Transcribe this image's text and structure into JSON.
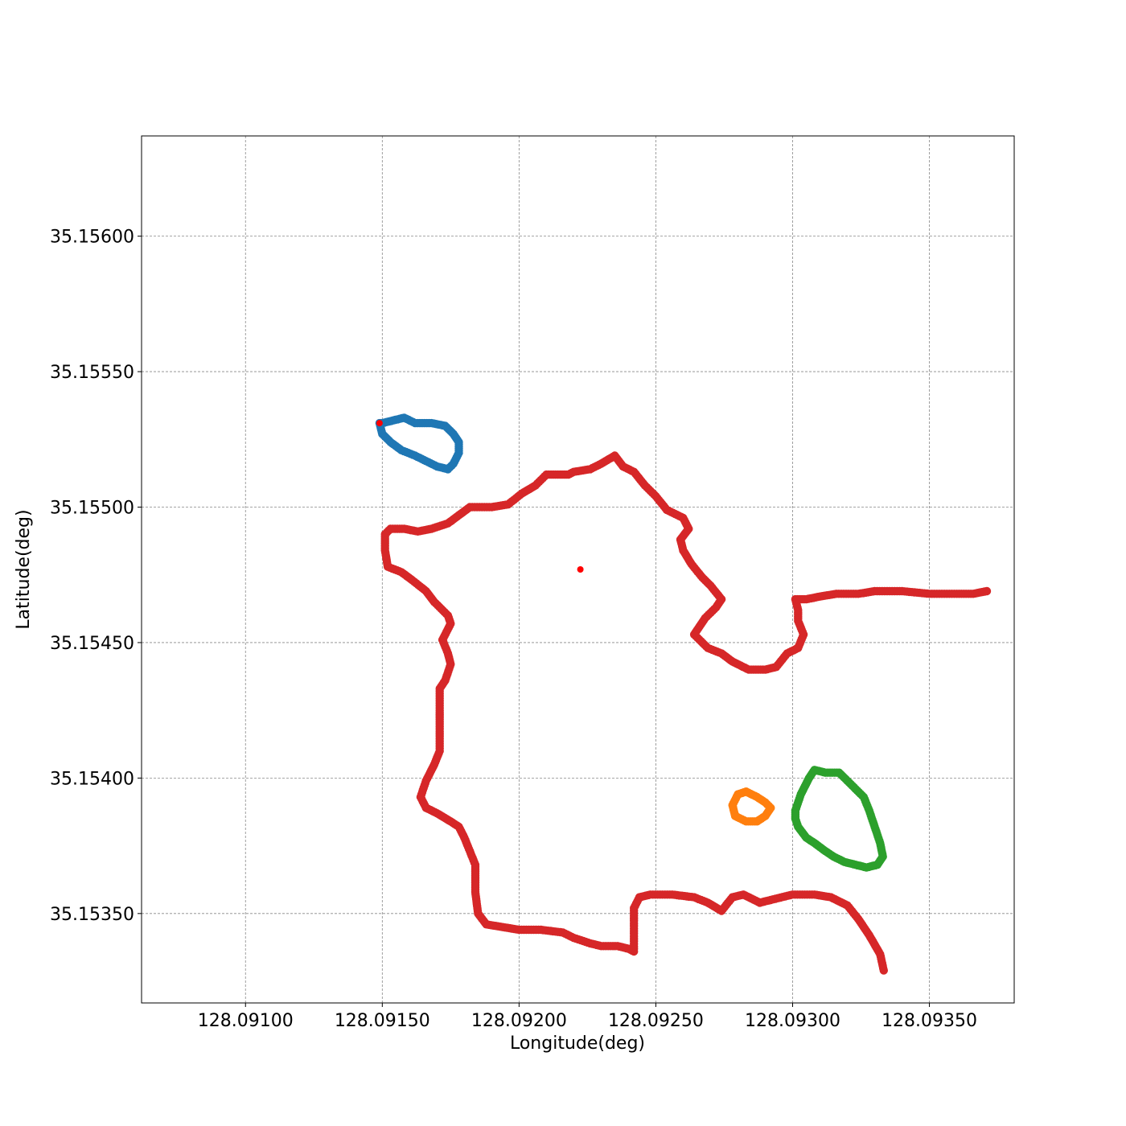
{
  "chart_data": {
    "type": "scatter",
    "title": "",
    "xlabel": "Longitude(deg)",
    "ylabel": "Latitude(deg)",
    "xlim": [
      128.09062,
      128.09381
    ],
    "ylim": [
      35.15317,
      35.15637
    ],
    "grid": true,
    "x_ticks": [
      128.091,
      128.0915,
      128.092,
      128.0925,
      128.093,
      128.0935
    ],
    "x_tick_labels": [
      "128.09100",
      "128.09150",
      "128.09200",
      "128.09250",
      "128.09300",
      "128.09350"
    ],
    "y_ticks": [
      35.1535,
      35.154,
      35.1545,
      35.155,
      35.1555,
      35.156
    ],
    "y_tick_labels": [
      "35.15350",
      "35.15400",
      "35.15450",
      "35.15500",
      "35.15550",
      "35.15600"
    ],
    "series": [
      {
        "color": "#d62728",
        "closed": false,
        "points": [
          [
            128.093333,
            35.15329
          ],
          [
            128.09332,
            35.15335
          ],
          [
            128.09328,
            35.15342
          ],
          [
            128.09324,
            35.15348
          ],
          [
            128.0932,
            35.15353
          ],
          [
            128.09314,
            35.15356
          ],
          [
            128.09308,
            35.15357
          ],
          [
            128.093,
            35.15357
          ],
          [
            128.09292,
            35.15355
          ],
          [
            128.09288,
            35.15354
          ],
          [
            128.09282,
            35.15357
          ],
          [
            128.09278,
            35.15356
          ],
          [
            128.09274,
            35.15351
          ],
          [
            128.09269,
            35.15354
          ],
          [
            128.09264,
            35.15356
          ],
          [
            128.09256,
            35.15357
          ],
          [
            128.09248,
            35.15357
          ],
          [
            128.09244,
            35.15356
          ],
          [
            128.09242,
            35.15352
          ],
          [
            128.09242,
            35.15336
          ],
          [
            128.0924,
            35.15337
          ],
          [
            128.09236,
            35.15338
          ],
          [
            128.0923,
            35.15338
          ],
          [
            128.09226,
            35.15339
          ],
          [
            128.0922,
            35.15341
          ],
          [
            128.09216,
            35.15343
          ],
          [
            128.09208,
            35.15344
          ],
          [
            128.092,
            35.15344
          ],
          [
            128.09194,
            35.15345
          ],
          [
            128.09188,
            35.15346
          ],
          [
            128.09185,
            35.1535
          ],
          [
            128.09184,
            35.15358
          ],
          [
            128.09184,
            35.15364
          ],
          [
            128.09184,
            35.15368
          ],
          [
            128.09182,
            35.15373
          ],
          [
            128.0918,
            35.15378
          ],
          [
            128.09178,
            35.15382
          ],
          [
            128.09175,
            35.15384
          ],
          [
            128.0917,
            35.15387
          ],
          [
            128.09166,
            35.15389
          ],
          [
            128.09164,
            35.15393
          ],
          [
            128.09166,
            35.15399
          ],
          [
            128.09169,
            35.15405
          ],
          [
            128.09171,
            35.1541
          ],
          [
            128.09171,
            35.1542
          ],
          [
            128.09171,
            35.15425
          ],
          [
            128.09171,
            35.15433
          ],
          [
            128.09173,
            35.15436
          ],
          [
            128.09175,
            35.15442
          ],
          [
            128.09174,
            35.15446
          ],
          [
            128.09172,
            35.15451
          ],
          [
            128.09175,
            35.15457
          ],
          [
            128.09174,
            35.1546
          ],
          [
            128.09169,
            35.15465
          ],
          [
            128.09166,
            35.15469
          ],
          [
            128.09161,
            35.15473
          ],
          [
            128.09157,
            35.15476
          ],
          [
            128.09152,
            35.15478
          ],
          [
            128.09151,
            35.15484
          ],
          [
            128.09151,
            35.1549
          ],
          [
            128.09153,
            35.15492
          ],
          [
            128.09158,
            35.15492
          ],
          [
            128.09163,
            35.15491
          ],
          [
            128.09168,
            35.15492
          ],
          [
            128.09174,
            35.15494
          ],
          [
            128.09178,
            35.15497
          ],
          [
            128.09182,
            35.155
          ],
          [
            128.0919,
            35.155
          ],
          [
            128.09196,
            35.15501
          ],
          [
            128.09201,
            35.15505
          ],
          [
            128.09206,
            35.15508
          ],
          [
            128.0921,
            35.15512
          ],
          [
            128.09215,
            35.15512
          ],
          [
            128.09218,
            35.15512
          ],
          [
            128.0922,
            35.15513
          ],
          [
            128.09226,
            35.15514
          ],
          [
            128.0923,
            35.15516
          ],
          [
            128.09235,
            35.15519
          ],
          [
            128.09238,
            35.15515
          ],
          [
            128.09242,
            35.15513
          ],
          [
            128.09246,
            35.15508
          ],
          [
            128.0925,
            35.15504
          ],
          [
            128.09254,
            35.15499
          ],
          [
            128.0926,
            35.15496
          ],
          [
            128.09262,
            35.15492
          ],
          [
            128.09259,
            35.15488
          ],
          [
            128.0926,
            35.15484
          ],
          [
            128.09263,
            35.15479
          ],
          [
            128.09267,
            35.15474
          ],
          [
            128.0927,
            35.15471
          ],
          [
            128.09274,
            35.15466
          ],
          [
            128.09272,
            35.15463
          ],
          [
            128.09268,
            35.15459
          ],
          [
            128.09264,
            35.15453
          ],
          [
            128.09269,
            35.15448
          ],
          [
            128.09274,
            35.15446
          ],
          [
            128.09278,
            35.15443
          ],
          [
            128.09284,
            35.1544
          ],
          [
            128.0929,
            35.1544
          ],
          [
            128.09294,
            35.15441
          ],
          [
            128.09298,
            35.15446
          ],
          [
            128.09302,
            35.15448
          ],
          [
            128.09304,
            35.15453
          ],
          [
            128.09302,
            35.15458
          ],
          [
            128.09302,
            35.15462
          ],
          [
            128.09301,
            35.15466
          ],
          [
            128.09305,
            35.15466
          ],
          [
            128.0931,
            35.15467
          ],
          [
            128.09316,
            35.15468
          ],
          [
            128.09324,
            35.15468
          ],
          [
            128.0933,
            35.15469
          ],
          [
            128.0934,
            35.15469
          ],
          [
            128.0935,
            35.15468
          ],
          [
            128.0936,
            35.15468
          ],
          [
            128.09366,
            35.15468
          ],
          [
            128.09371,
            35.15469
          ]
        ]
      },
      {
        "color": "#1f77b4",
        "closed": true,
        "points": [
          [
            128.09149,
            35.15531
          ],
          [
            128.0915,
            35.15527
          ],
          [
            128.09153,
            35.15524
          ],
          [
            128.09157,
            35.15521
          ],
          [
            128.09162,
            35.15519
          ],
          [
            128.09166,
            35.15517
          ],
          [
            128.0917,
            35.15515
          ],
          [
            128.09174,
            35.15514
          ],
          [
            128.09176,
            35.15516
          ],
          [
            128.09178,
            35.1552
          ],
          [
            128.09178,
            35.15524
          ],
          [
            128.09176,
            35.15527
          ],
          [
            128.09173,
            35.1553
          ],
          [
            128.09168,
            35.15531
          ],
          [
            128.09162,
            35.15531
          ],
          [
            128.09158,
            35.15533
          ],
          [
            128.09154,
            35.15532
          ],
          [
            128.0915,
            35.15531
          ]
        ]
      },
      {
        "color": "#ff7f0e",
        "closed": true,
        "points": [
          [
            128.09278,
            35.1539
          ],
          [
            128.0928,
            35.15394
          ],
          [
            128.09283,
            35.15395
          ],
          [
            128.09287,
            35.15393
          ],
          [
            128.0929,
            35.15391
          ],
          [
            128.09292,
            35.15389
          ],
          [
            128.0929,
            35.15386
          ],
          [
            128.09287,
            35.15384
          ],
          [
            128.09283,
            35.15384
          ],
          [
            128.09279,
            35.15386
          ]
        ]
      },
      {
        "color": "#2ca02c",
        "closed": true,
        "points": [
          [
            128.09301,
            35.15388
          ],
          [
            128.09303,
            35.15394
          ],
          [
            128.09306,
            35.154
          ],
          [
            128.09308,
            35.15403
          ],
          [
            128.09312,
            35.15402
          ],
          [
            128.09317,
            35.15402
          ],
          [
            128.0932,
            35.15399
          ],
          [
            128.09323,
            35.15396
          ],
          [
            128.09326,
            35.15393
          ],
          [
            128.09328,
            35.15388
          ],
          [
            128.0933,
            35.15382
          ],
          [
            128.09332,
            35.15376
          ],
          [
            128.09333,
            35.15371
          ],
          [
            128.09331,
            35.15368
          ],
          [
            128.09327,
            35.15367
          ],
          [
            128.09323,
            35.15368
          ],
          [
            128.09319,
            35.15369
          ],
          [
            128.09315,
            35.15371
          ],
          [
            128.09312,
            35.15373
          ],
          [
            128.09308,
            35.15376
          ],
          [
            128.09305,
            35.15378
          ],
          [
            128.09302,
            35.15382
          ],
          [
            128.09301,
            35.15385
          ]
        ]
      },
      {
        "color": "#ff0000",
        "closed": false,
        "marker_only": true,
        "points": [
          [
            128.092224,
            35.15477
          ],
          [
            128.09149,
            35.15531
          ]
        ]
      }
    ]
  }
}
